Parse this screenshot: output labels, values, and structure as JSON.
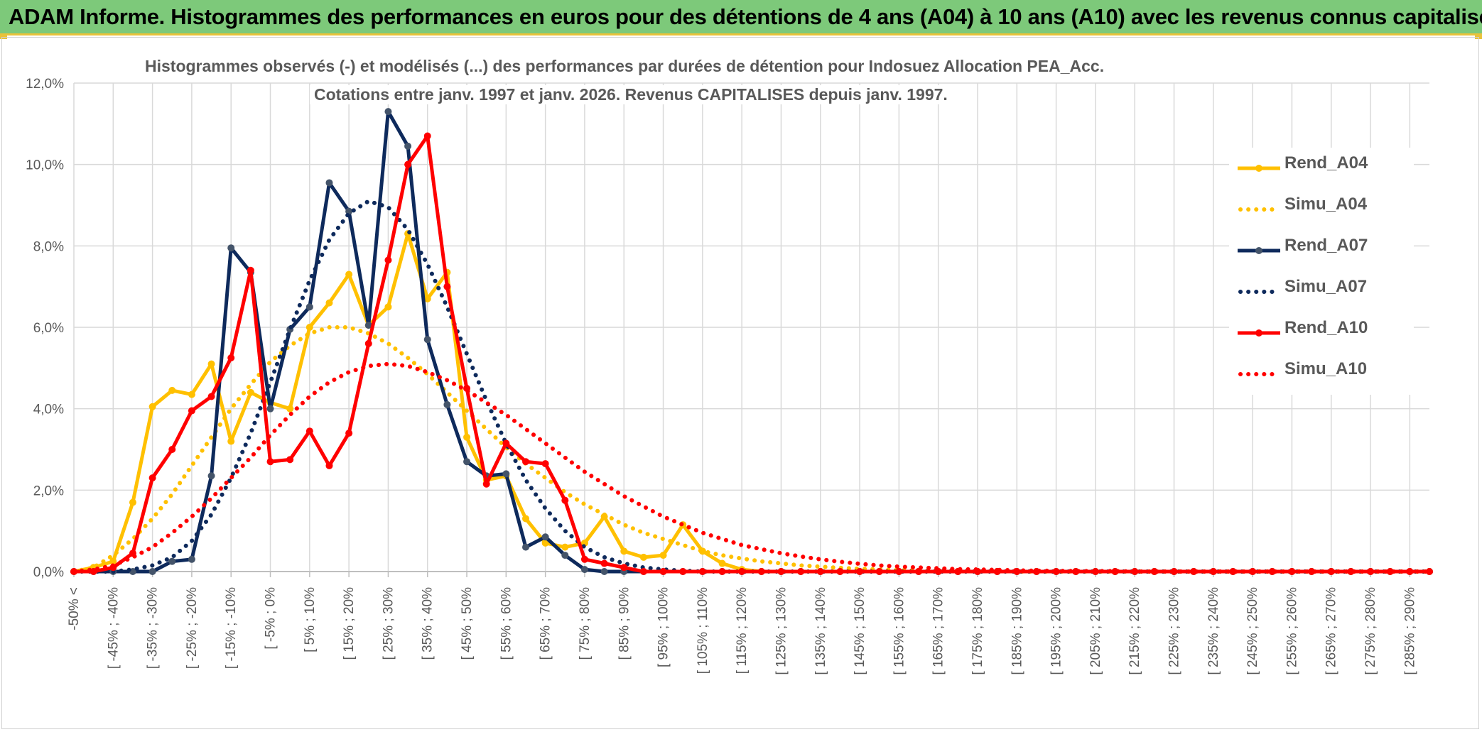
{
  "header": {
    "title": "ADAM Informe. Histogrammes des performances en euros pour des détentions de 4 ans (A04) à 10 ans (A10) avec les revenus connus capitalisés"
  },
  "colors": {
    "header_bg": "#7dc97a",
    "accent": "#e9c23a",
    "A04": "#ffc000",
    "A07": "#0e2a5c",
    "A10": "#ff0000"
  },
  "chart_data": {
    "type": "line",
    "title_line1": "Histogrammes observés (-) et modélisés (...) des performances par durées de détention pour Indosuez Allocation PEA_Acc.",
    "title_line2": "Cotations entre janv. 1997 et janv. 2026. Revenus CAPITALISES depuis janv. 1997.",
    "ylim": [
      0,
      12
    ],
    "yticks": [
      "0,0%",
      "2,0%",
      "4,0%",
      "6,0%",
      "8,0%",
      "10,0%",
      "12,0%"
    ],
    "grid": true,
    "legend_position": "right",
    "x_labels": [
      "-50% <",
      "[ -45% ; -40%",
      "[ -35% ; -30%",
      "[ -25% ; -20%",
      "[ -15% ; -10%",
      "[ -5% ; 0%",
      "[ 5% ; 10%",
      "[ 15% ; 20%",
      "[ 25% ; 30%",
      "[ 35% ; 40%",
      "[ 45% ; 50%",
      "[ 55% ; 60%",
      "[ 65% ; 70%",
      "[ 75% ; 80%",
      "[ 85% ; 90%",
      "[ 95% ; 100%",
      "[ 105% ; 110%",
      "[ 115% ; 120%",
      "[ 125% ; 130%",
      "[ 135% ; 140%",
      "[ 145% ; 150%",
      "[ 155% ; 160%",
      "[ 165% ; 170%",
      "[ 175% ; 180%",
      "[ 185% ; 190%",
      "[ 195% ; 200%",
      "[ 205% ; 210%",
      "[ 215% ; 220%",
      "[ 225% ; 230%",
      "[ 235% ; 240%",
      "[ 245% ; 250%",
      "[ 255% ; 260%",
      "[ 265% ; 270%",
      "[ 275% ; 280%",
      "[ 285% ; 290%"
    ],
    "n_bins": 70,
    "series": [
      {
        "name": "Rend_A04",
        "style": "solid",
        "color": "#ffc000",
        "values": [
          0,
          0.1,
          0.25,
          1.7,
          4.05,
          4.45,
          4.35,
          5.1,
          3.2,
          4.4,
          4.15,
          4.0,
          6.0,
          6.6,
          7.3,
          6.05,
          6.5,
          8.3,
          6.7,
          7.35,
          3.3,
          2.25,
          2.35,
          1.3,
          0.7,
          0.6,
          0.7,
          1.35,
          0.5,
          0.35,
          0.4,
          1.15,
          0.5,
          0.2,
          0.05,
          0,
          0,
          0,
          0,
          0,
          0,
          0,
          0,
          0,
          0,
          0,
          0,
          0,
          0,
          0,
          0,
          0,
          0,
          0,
          0,
          0,
          0,
          0,
          0,
          0,
          0,
          0,
          0,
          0,
          0,
          0,
          0,
          0,
          0,
          0
        ]
      },
      {
        "name": "Simu_A04",
        "style": "dotted",
        "color": "#ffc000",
        "values": [
          0,
          0.1,
          0.4,
          0.8,
          1.3,
          1.9,
          2.6,
          3.3,
          4.0,
          4.6,
          5.15,
          5.55,
          5.85,
          6.0,
          6.0,
          5.85,
          5.6,
          5.25,
          4.85,
          4.4,
          3.95,
          3.5,
          3.05,
          2.65,
          2.3,
          1.95,
          1.65,
          1.4,
          1.15,
          0.95,
          0.8,
          0.65,
          0.5,
          0.4,
          0.32,
          0.25,
          0.2,
          0.15,
          0.12,
          0.09,
          0.07,
          0.05,
          0.04,
          0.03,
          0.02,
          0.02,
          0.01,
          0.01,
          0,
          0,
          0,
          0,
          0,
          0,
          0,
          0,
          0,
          0,
          0,
          0,
          0,
          0,
          0,
          0,
          0,
          0,
          0,
          0,
          0,
          0
        ]
      },
      {
        "name": "Rend_A07",
        "style": "solid",
        "color": "#0e2a5c",
        "values": [
          0,
          0,
          0,
          0,
          0,
          0.25,
          0.3,
          2.35,
          7.95,
          7.35,
          4.0,
          5.95,
          6.5,
          9.55,
          8.85,
          6.05,
          11.3,
          10.45,
          5.7,
          4.1,
          2.7,
          2.35,
          2.4,
          0.6,
          0.85,
          0.4,
          0.05,
          0,
          0,
          0,
          0,
          0,
          0,
          0,
          0,
          0,
          0,
          0,
          0,
          0,
          0,
          0,
          0,
          0,
          0,
          0,
          0,
          0,
          0,
          0,
          0,
          0,
          0,
          0,
          0,
          0,
          0,
          0,
          0,
          0,
          0,
          0,
          0,
          0,
          0,
          0,
          0,
          0,
          0,
          0
        ]
      },
      {
        "name": "Simu_A07",
        "style": "dotted",
        "color": "#0e2a5c",
        "values": [
          0,
          0,
          0,
          0.05,
          0.15,
          0.35,
          0.75,
          1.4,
          2.3,
          3.4,
          4.65,
          5.95,
          7.15,
          8.15,
          8.8,
          9.1,
          8.95,
          8.4,
          7.55,
          6.5,
          5.35,
          4.2,
          3.15,
          2.25,
          1.55,
          1.0,
          0.6,
          0.35,
          0.2,
          0.1,
          0.05,
          0.02,
          0,
          0,
          0,
          0,
          0,
          0,
          0,
          0,
          0,
          0,
          0,
          0,
          0,
          0,
          0,
          0,
          0,
          0,
          0,
          0,
          0,
          0,
          0,
          0,
          0,
          0,
          0,
          0,
          0,
          0,
          0,
          0,
          0,
          0,
          0,
          0,
          0,
          0
        ]
      },
      {
        "name": "Rend_A10",
        "style": "solid",
        "color": "#ff0000",
        "values": [
          0,
          0,
          0.1,
          0.45,
          2.3,
          3.0,
          3.95,
          4.3,
          5.25,
          7.4,
          2.7,
          2.75,
          3.45,
          2.6,
          3.4,
          5.6,
          7.65,
          10.0,
          10.7,
          7.0,
          4.5,
          2.15,
          3.15,
          2.7,
          2.65,
          1.75,
          0.3,
          0.2,
          0.1,
          0,
          0,
          0,
          0,
          0,
          0,
          0,
          0,
          0,
          0,
          0,
          0,
          0,
          0,
          0,
          0,
          0,
          0,
          0,
          0,
          0,
          0,
          0,
          0,
          0,
          0,
          0,
          0,
          0,
          0,
          0,
          0,
          0,
          0,
          0,
          0,
          0,
          0,
          0,
          0,
          0
        ]
      },
      {
        "name": "Simu_A10",
        "style": "dotted",
        "color": "#ff0000",
        "values": [
          0,
          0.05,
          0.15,
          0.35,
          0.6,
          0.95,
          1.35,
          1.8,
          2.3,
          2.8,
          3.35,
          3.85,
          4.3,
          4.65,
          4.9,
          5.05,
          5.1,
          5.05,
          4.9,
          4.7,
          4.45,
          4.15,
          3.85,
          3.5,
          3.15,
          2.8,
          2.45,
          2.15,
          1.85,
          1.6,
          1.35,
          1.15,
          0.95,
          0.8,
          0.65,
          0.55,
          0.45,
          0.37,
          0.3,
          0.24,
          0.19,
          0.15,
          0.12,
          0.1,
          0.08,
          0.06,
          0.05,
          0.04,
          0.03,
          0.02,
          0.02,
          0.01,
          0.01,
          0.01,
          0,
          0,
          0,
          0,
          0,
          0,
          0,
          0,
          0,
          0,
          0,
          0,
          0,
          0,
          0,
          0
        ]
      }
    ]
  }
}
